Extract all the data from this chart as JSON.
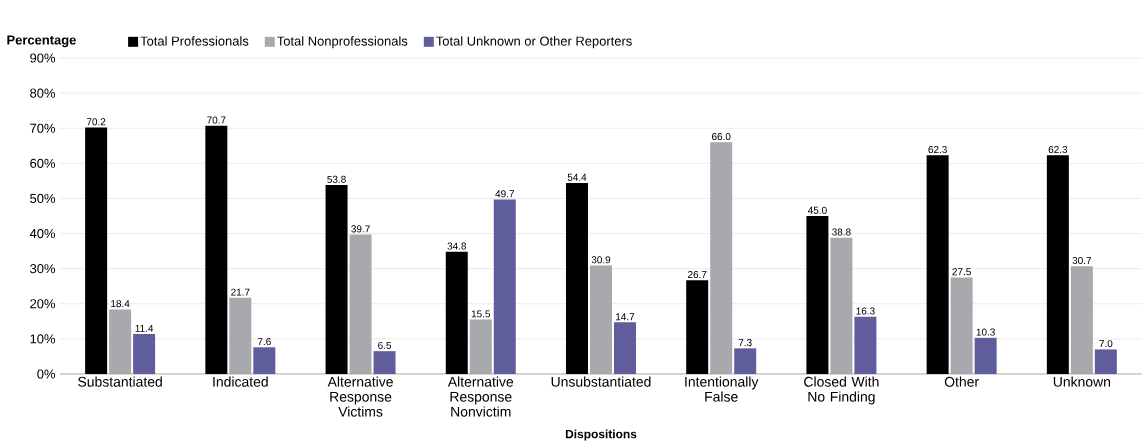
{
  "chart_data": {
    "type": "bar",
    "xlabel": "Dispositions",
    "ylabel": "Percentage",
    "categories": [
      "Substantiated",
      "Indicated",
      "Alternative Response Victims",
      "Alternative Response Nonvictim",
      "Unsubstantiated",
      "Intentionally False",
      "Closed With No Finding",
      "Other",
      "Unknown"
    ],
    "series": [
      {
        "name": "Total Professionals",
        "color": "#000000",
        "values": [
          70.2,
          70.7,
          53.8,
          34.8,
          54.4,
          26.7,
          45.0,
          62.3,
          62.3
        ],
        "value_labels": [
          "70.2",
          "70.7",
          "53.8",
          "34.8",
          "54.4",
          "26.7",
          "45.0",
          "62.3",
          "62.3"
        ]
      },
      {
        "name": "Total Nonprofessionals",
        "color": "#a7a9ac",
        "values": [
          18.4,
          21.7,
          39.7,
          15.5,
          30.9,
          66.0,
          38.8,
          27.5,
          30.7
        ],
        "value_labels": [
          "18.4",
          "21.7",
          "39.7",
          "15.5",
          "30.9",
          "66.0",
          "38.8",
          "27.5",
          "30.7"
        ]
      },
      {
        "name": "Total Unknown or Other Reporters",
        "color": "#5f5d9c",
        "values": [
          11.4,
          7.6,
          6.5,
          49.7,
          14.7,
          7.3,
          16.3,
          10.3,
          7.0
        ],
        "value_labels": [
          "11.4",
          "7.6",
          "6.5",
          "49.7",
          "14.7",
          "7.3",
          "16.3",
          "10.3",
          "7.0"
        ]
      }
    ],
    "ylim": [
      0,
      90
    ],
    "yticks": [
      {
        "value": 0,
        "label": "0%"
      },
      {
        "value": 10,
        "label": "10%"
      },
      {
        "value": 20,
        "label": "20%"
      },
      {
        "value": 30,
        "label": "30%"
      },
      {
        "value": 40,
        "label": "40%"
      },
      {
        "value": 50,
        "label": "50%"
      },
      {
        "value": 60,
        "label": "60%"
      },
      {
        "value": 70,
        "label": "70%"
      },
      {
        "value": 80,
        "label": "80%"
      },
      {
        "value": 90,
        "label": "90%"
      }
    ],
    "grid": "y",
    "legend": "top"
  }
}
